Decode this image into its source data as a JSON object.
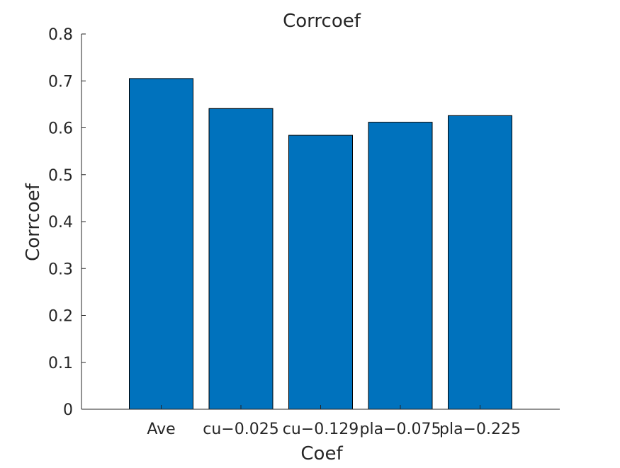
{
  "chart_data": {
    "type": "bar",
    "title": "Corrcoef",
    "xlabel": "Coef",
    "ylabel": "Corrcoef",
    "categories": [
      "Ave",
      "cu-0.025",
      "cu-0.129",
      "pla-0.075",
      "pla-0.225"
    ],
    "categories_display": [
      "Ave",
      "cu−0.025",
      "cu−0.129",
      "pla−0.075",
      "pla−0.225"
    ],
    "values": [
      0.705,
      0.641,
      0.584,
      0.612,
      0.626
    ],
    "ylim": [
      0,
      0.8
    ],
    "yticks": [
      0,
      0.1,
      0.2,
      0.3,
      0.4,
      0.5,
      0.6,
      0.7,
      0.8
    ],
    "ytick_labels": [
      "0",
      "0.1",
      "0.2",
      "0.3",
      "0.4",
      "0.5",
      "0.6",
      "0.7",
      "0.8"
    ],
    "grid": false,
    "legend": "none",
    "bar_color": "#0072BD",
    "bar_edge_color": "#000000",
    "axis_color": "#262626"
  }
}
